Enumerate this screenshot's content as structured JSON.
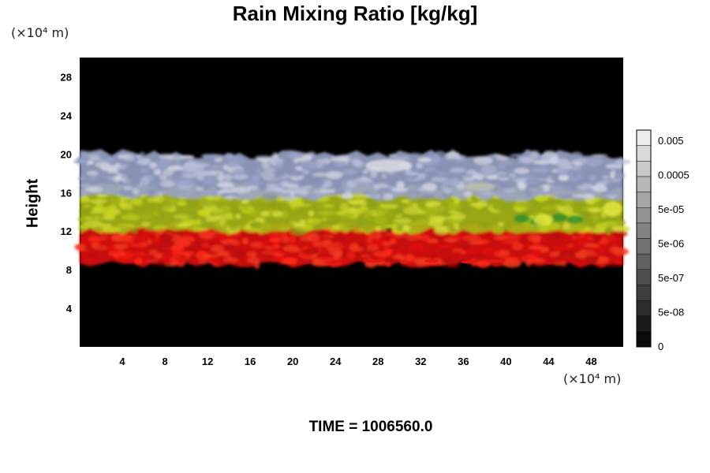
{
  "chart_data": {
    "type": "heatmap",
    "title": "Rain Mixing Ratio [kg/kg]",
    "ylabel": "Height",
    "xlabel": "",
    "x_unit": "(×10⁴ m)",
    "y_unit": "(×10⁴ m)",
    "xlim": [
      0,
      51
    ],
    "ylim": [
      0,
      30
    ],
    "x_ticks": [
      "4",
      "8",
      "12",
      "16",
      "20",
      "24",
      "28",
      "32",
      "36",
      "40",
      "44",
      "48"
    ],
    "y_ticks": [
      "4",
      "8",
      "12",
      "16",
      "20",
      "24",
      "28"
    ],
    "colorbar": {
      "labels": [
        "0.005",
        "0.0005",
        "5e-05",
        "5e-06",
        "5e-07",
        "5e-08",
        "0"
      ],
      "levels": 14
    },
    "bands": [
      {
        "color": "red",
        "y_range": [
          8.5,
          12.5
        ]
      },
      {
        "color": "yellow-green",
        "y_range": [
          12,
          16.5
        ]
      },
      {
        "color": "light blue-grey",
        "y_range": [
          15.5,
          20
        ]
      }
    ],
    "footer": "TIME = 1006560.0"
  }
}
